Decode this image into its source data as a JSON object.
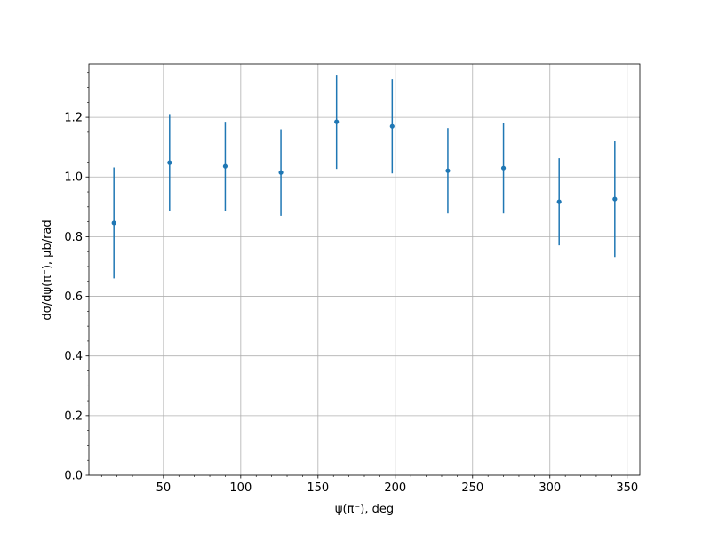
{
  "chart_data": {
    "type": "errorbar",
    "xlabel": "ψ(π⁻), deg",
    "ylabel": "dσ/dψ(π⁻), μb/rad",
    "x": [
      18,
      54,
      90,
      126,
      162,
      198,
      234,
      270,
      306,
      342
    ],
    "series": [
      {
        "color": "#1f77b4",
        "values": [
          0.846,
          1.048,
          1.036,
          1.015,
          1.185,
          1.17,
          1.021,
          1.03,
          0.917,
          0.926
        ],
        "errors": [
          0.186,
          0.163,
          0.149,
          0.145,
          0.158,
          0.158,
          0.143,
          0.152,
          0.146,
          0.194
        ]
      }
    ],
    "xlim": [
      1.8,
      358.2
    ],
    "ylim": [
      0,
      1.379
    ],
    "xticks": [
      50,
      100,
      150,
      200,
      250,
      300,
      350
    ],
    "yticks": [
      {
        "value": 0,
        "label": "0.0"
      },
      {
        "value": 0.2,
        "label": "0.2"
      },
      {
        "value": 0.4,
        "label": "0.4"
      },
      {
        "value": 0.6,
        "label": "0.6"
      },
      {
        "value": 0.8,
        "label": "0.8"
      },
      {
        "value": 1.0,
        "label": "1.0"
      },
      {
        "value": 1.2,
        "label": "1.2"
      }
    ],
    "xminorticks": [
      10,
      20,
      30,
      40,
      60,
      70,
      80,
      90,
      110,
      120,
      130,
      140,
      160,
      170,
      180,
      190,
      210,
      220,
      230,
      240,
      260,
      270,
      280,
      290,
      310,
      320,
      330,
      340
    ],
    "yminorticks": [
      0.05,
      0.1,
      0.15,
      0.25,
      0.3,
      0.35,
      0.45,
      0.5,
      0.55,
      0.65,
      0.7,
      0.75,
      0.85,
      0.9,
      0.95,
      1.05,
      1.1,
      1.15,
      1.25,
      1.3,
      1.35
    ],
    "grid": true
  }
}
